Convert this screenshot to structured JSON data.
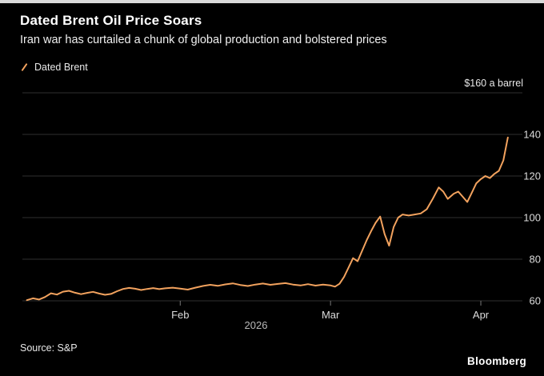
{
  "header": {
    "title": "Dated Brent Oil Price Soars",
    "subtitle": "Iran war has curtailed a chunk of global production and bolstered prices"
  },
  "legend": {
    "label": "Dated Brent",
    "marker_color": "#F2A25E"
  },
  "footer": {
    "year": "2026",
    "source": "Source: S&P",
    "brand": "Bloomberg"
  },
  "colors": {
    "background": "#000000",
    "line": "#F2A25E",
    "grid": "#2f2f2f",
    "tick": "#777777",
    "tick_text": "#dcdcdc"
  },
  "chart_data": {
    "type": "line",
    "title": "Dated Brent Oil Price Soars",
    "subtitle": "Iran war has curtailed a chunk of global production and bolstered prices",
    "ylabel": "$160 a barrel",
    "xlabel": "2026",
    "ylim": [
      60,
      160
    ],
    "yticks": [
      60,
      80,
      100,
      120,
      140,
      160
    ],
    "ytick_labels": [
      "60",
      "80",
      "100",
      "120",
      "140",
      ""
    ],
    "xlim": [
      -0.05,
      3.25
    ],
    "xticks": [
      {
        "pos": 1,
        "label": "Feb"
      },
      {
        "pos": 2,
        "label": "Mar"
      },
      {
        "pos": 3,
        "label": "Apr"
      }
    ],
    "grid": "horizontal",
    "legend_position": "top-left",
    "x_unit": "months-from-Jan-2026",
    "series": [
      {
        "name": "Dated Brent",
        "color": "#F2A25E",
        "points": [
          [
            -0.02,
            60.3
          ],
          [
            0.02,
            61.2
          ],
          [
            0.06,
            60.6
          ],
          [
            0.1,
            61.8
          ],
          [
            0.14,
            63.6
          ],
          [
            0.18,
            63.0
          ],
          [
            0.22,
            64.4
          ],
          [
            0.26,
            64.8
          ],
          [
            0.3,
            63.9
          ],
          [
            0.34,
            63.2
          ],
          [
            0.38,
            63.8
          ],
          [
            0.42,
            64.3
          ],
          [
            0.46,
            63.5
          ],
          [
            0.5,
            62.9
          ],
          [
            0.54,
            63.3
          ],
          [
            0.58,
            64.6
          ],
          [
            0.62,
            65.7
          ],
          [
            0.66,
            66.2
          ],
          [
            0.7,
            65.8
          ],
          [
            0.74,
            65.2
          ],
          [
            0.78,
            65.7
          ],
          [
            0.82,
            66.1
          ],
          [
            0.86,
            65.6
          ],
          [
            0.9,
            66.0
          ],
          [
            0.95,
            66.3
          ],
          [
            1.0,
            65.9
          ],
          [
            1.05,
            65.4
          ],
          [
            1.1,
            66.3
          ],
          [
            1.15,
            67.1
          ],
          [
            1.2,
            67.7
          ],
          [
            1.25,
            67.2
          ],
          [
            1.3,
            67.9
          ],
          [
            1.35,
            68.4
          ],
          [
            1.4,
            67.6
          ],
          [
            1.45,
            67.1
          ],
          [
            1.5,
            67.8
          ],
          [
            1.55,
            68.3
          ],
          [
            1.6,
            67.7
          ],
          [
            1.65,
            68.1
          ],
          [
            1.7,
            68.5
          ],
          [
            1.75,
            67.8
          ],
          [
            1.8,
            67.4
          ],
          [
            1.85,
            68.0
          ],
          [
            1.9,
            67.3
          ],
          [
            1.95,
            67.8
          ],
          [
            2.0,
            67.4
          ],
          [
            2.03,
            66.8
          ],
          [
            2.06,
            68.2
          ],
          [
            2.09,
            71.5
          ],
          [
            2.12,
            76.0
          ],
          [
            2.15,
            80.5
          ],
          [
            2.18,
            79.0
          ],
          [
            2.21,
            84.0
          ],
          [
            2.24,
            89.0
          ],
          [
            2.27,
            93.5
          ],
          [
            2.3,
            97.5
          ],
          [
            2.33,
            100.5
          ],
          [
            2.36,
            92.0
          ],
          [
            2.39,
            86.5
          ],
          [
            2.42,
            95.5
          ],
          [
            2.45,
            100.0
          ],
          [
            2.48,
            101.5
          ],
          [
            2.52,
            101.0
          ],
          [
            2.56,
            101.5
          ],
          [
            2.6,
            102.0
          ],
          [
            2.64,
            104.0
          ],
          [
            2.68,
            109.0
          ],
          [
            2.72,
            114.5
          ],
          [
            2.75,
            112.5
          ],
          [
            2.78,
            109.0
          ],
          [
            2.82,
            111.5
          ],
          [
            2.85,
            112.5
          ],
          [
            2.88,
            110.0
          ],
          [
            2.91,
            107.5
          ],
          [
            2.94,
            112.0
          ],
          [
            2.97,
            116.5
          ],
          [
            3.0,
            118.5
          ],
          [
            3.03,
            120.0
          ],
          [
            3.06,
            119.0
          ],
          [
            3.09,
            121.0
          ],
          [
            3.12,
            122.5
          ],
          [
            3.15,
            127.5
          ],
          [
            3.18,
            138.5
          ]
        ]
      }
    ]
  }
}
